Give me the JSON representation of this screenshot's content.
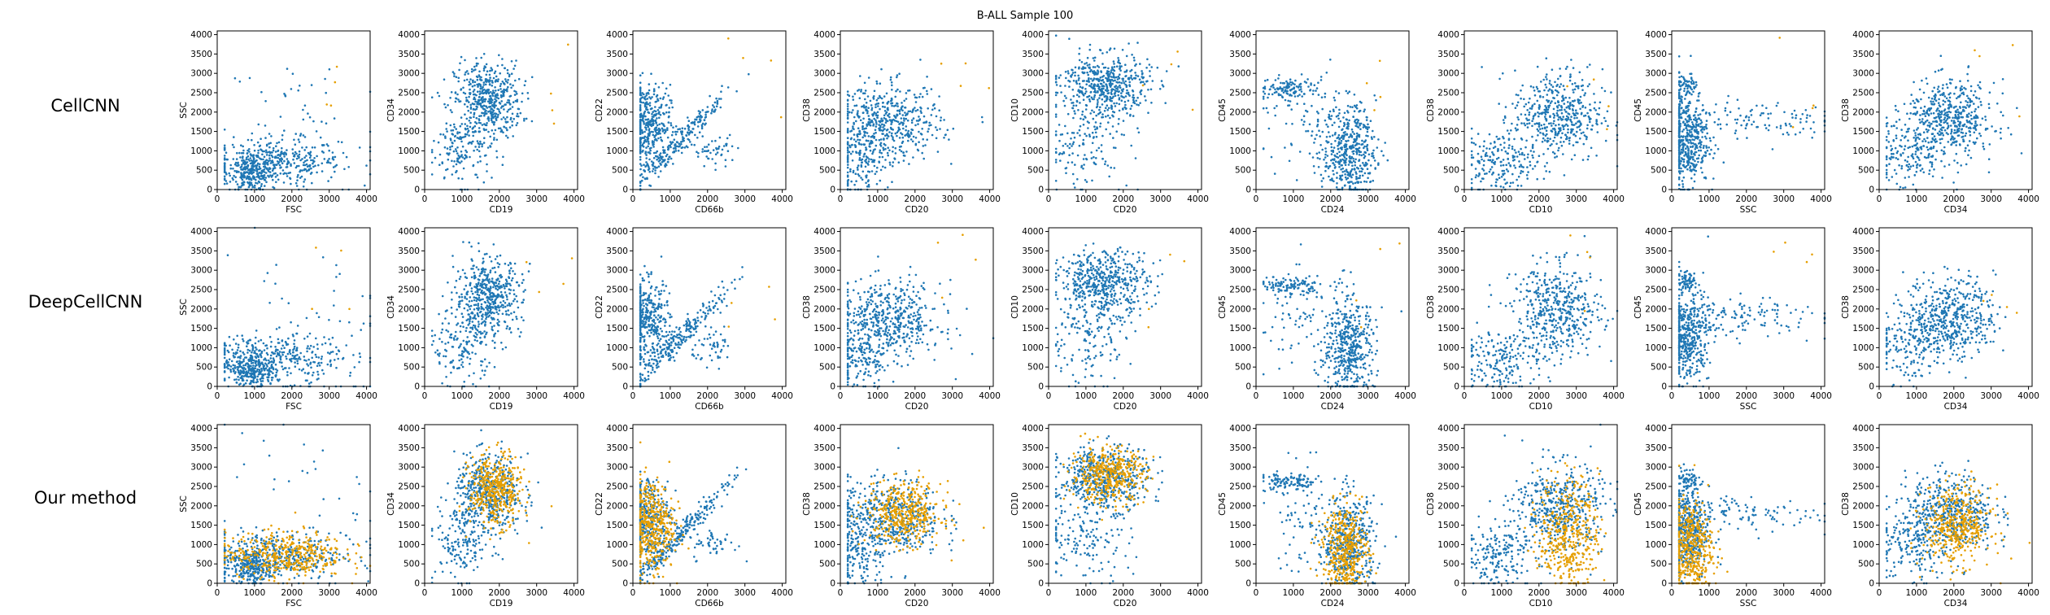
{
  "figure": {
    "suptitle": "B-ALL Sample 100",
    "row_labels": [
      "CellCNN",
      "DeepCellCNN",
      "Our method"
    ]
  },
  "colors": {
    "background_cells": "#1f77b4",
    "selected_cells": "#e69f00",
    "axes": "#000000"
  },
  "chart_data": {
    "type": "scatter",
    "title": "B-ALL Sample 100",
    "xlim": [
      0,
      4096
    ],
    "ylim": [
      0,
      4096
    ],
    "ticks": [
      0,
      1000,
      2000,
      3000,
      4000
    ],
    "yticks": [
      0,
      500,
      1000,
      1500,
      2000,
      2500,
      3000,
      3500,
      4000
    ],
    "panels": [
      {
        "xlabel": "FSC",
        "ylabel": "SSC",
        "blobs": [
          {
            "cx": 1500,
            "cy": 700,
            "sx": 900,
            "sy": 300,
            "w": 4
          },
          {
            "cx": 900,
            "cy": 400,
            "sx": 250,
            "sy": 200,
            "w": 2
          },
          {
            "cx": 2500,
            "cy": 1500,
            "sx": 1200,
            "sy": 1200,
            "w": 0.6
          }
        ],
        "selected": {
          "cx": 1800,
          "cy": 750,
          "sx": 800,
          "sy": 300
        }
      },
      {
        "xlabel": "CD19",
        "ylabel": "CD34",
        "blobs": [
          {
            "cx": 1700,
            "cy": 2300,
            "sx": 450,
            "sy": 500,
            "w": 4
          },
          {
            "cx": 1000,
            "cy": 1000,
            "sx": 400,
            "sy": 500,
            "w": 1.2
          }
        ],
        "selected": {
          "cx": 1900,
          "cy": 2400,
          "sx": 350,
          "sy": 450
        }
      },
      {
        "xlabel": "CD66b",
        "ylabel": "CD22",
        "blobs": [
          {
            "cx": 400,
            "cy": 1700,
            "sx": 300,
            "sy": 500,
            "w": 3
          },
          {
            "cx": 1200,
            "cy": 1200,
            "sx": 700,
            "sy": 700,
            "diag": true,
            "w": 2
          },
          {
            "cx": 2200,
            "cy": 1000,
            "sx": 300,
            "sy": 200,
            "w": 0.4
          }
        ],
        "selected": {
          "cx": 500,
          "cy": 1500,
          "sx": 300,
          "sy": 600
        }
      },
      {
        "xlabel": "CD20",
        "ylabel": "CD38",
        "blobs": [
          {
            "cx": 1300,
            "cy": 1700,
            "sx": 700,
            "sy": 500,
            "w": 4
          },
          {
            "cx": 500,
            "cy": 700,
            "sx": 400,
            "sy": 500,
            "w": 1.2
          }
        ],
        "selected": {
          "cx": 1700,
          "cy": 1800,
          "sx": 500,
          "sy": 400
        }
      },
      {
        "xlabel": "CD20",
        "ylabel": "CD10",
        "blobs": [
          {
            "cx": 1500,
            "cy": 2700,
            "sx": 600,
            "sy": 400,
            "w": 4
          },
          {
            "cx": 1000,
            "cy": 1200,
            "sx": 600,
            "sy": 600,
            "w": 1.2
          }
        ],
        "selected": {
          "cx": 1600,
          "cy": 2800,
          "sx": 500,
          "sy": 350
        }
      },
      {
        "xlabel": "CD24",
        "ylabel": "CD45",
        "blobs": [
          {
            "cx": 2500,
            "cy": 1000,
            "sx": 350,
            "sy": 600,
            "w": 4
          },
          {
            "cx": 900,
            "cy": 2600,
            "sx": 400,
            "sy": 120,
            "w": 1
          },
          {
            "cx": 1400,
            "cy": 1700,
            "sx": 700,
            "sy": 700,
            "w": 0.8
          }
        ],
        "selected": {
          "cx": 2400,
          "cy": 900,
          "sx": 300,
          "sy": 550
        }
      },
      {
        "xlabel": "CD10",
        "ylabel": "CD38",
        "blobs": [
          {
            "cx": 2500,
            "cy": 1900,
            "sx": 600,
            "sy": 600,
            "w": 4
          },
          {
            "cx": 900,
            "cy": 700,
            "sx": 500,
            "sy": 400,
            "w": 1.5
          }
        ],
        "selected": {
          "cx": 2800,
          "cy": 1300,
          "sx": 400,
          "sy": 700
        }
      },
      {
        "xlabel": "SSC",
        "ylabel": "CD45",
        "blobs": [
          {
            "cx": 400,
            "cy": 1300,
            "sx": 300,
            "sy": 600,
            "w": 4
          },
          {
            "cx": 2000,
            "cy": 1800,
            "sx": 1100,
            "sy": 250,
            "w": 1
          },
          {
            "cx": 400,
            "cy": 2700,
            "sx": 150,
            "sy": 150,
            "w": 0.5
          }
        ],
        "selected": {
          "cx": 500,
          "cy": 900,
          "sx": 300,
          "sy": 600
        }
      },
      {
        "xlabel": "CD34",
        "ylabel": "CD38",
        "blobs": [
          {
            "cx": 1900,
            "cy": 1800,
            "sx": 600,
            "sy": 500,
            "w": 4
          },
          {
            "cx": 800,
            "cy": 900,
            "sx": 500,
            "sy": 500,
            "w": 1.2
          }
        ],
        "selected": {
          "cx": 2100,
          "cy": 1500,
          "sx": 450,
          "sy": 500
        }
      }
    ]
  }
}
